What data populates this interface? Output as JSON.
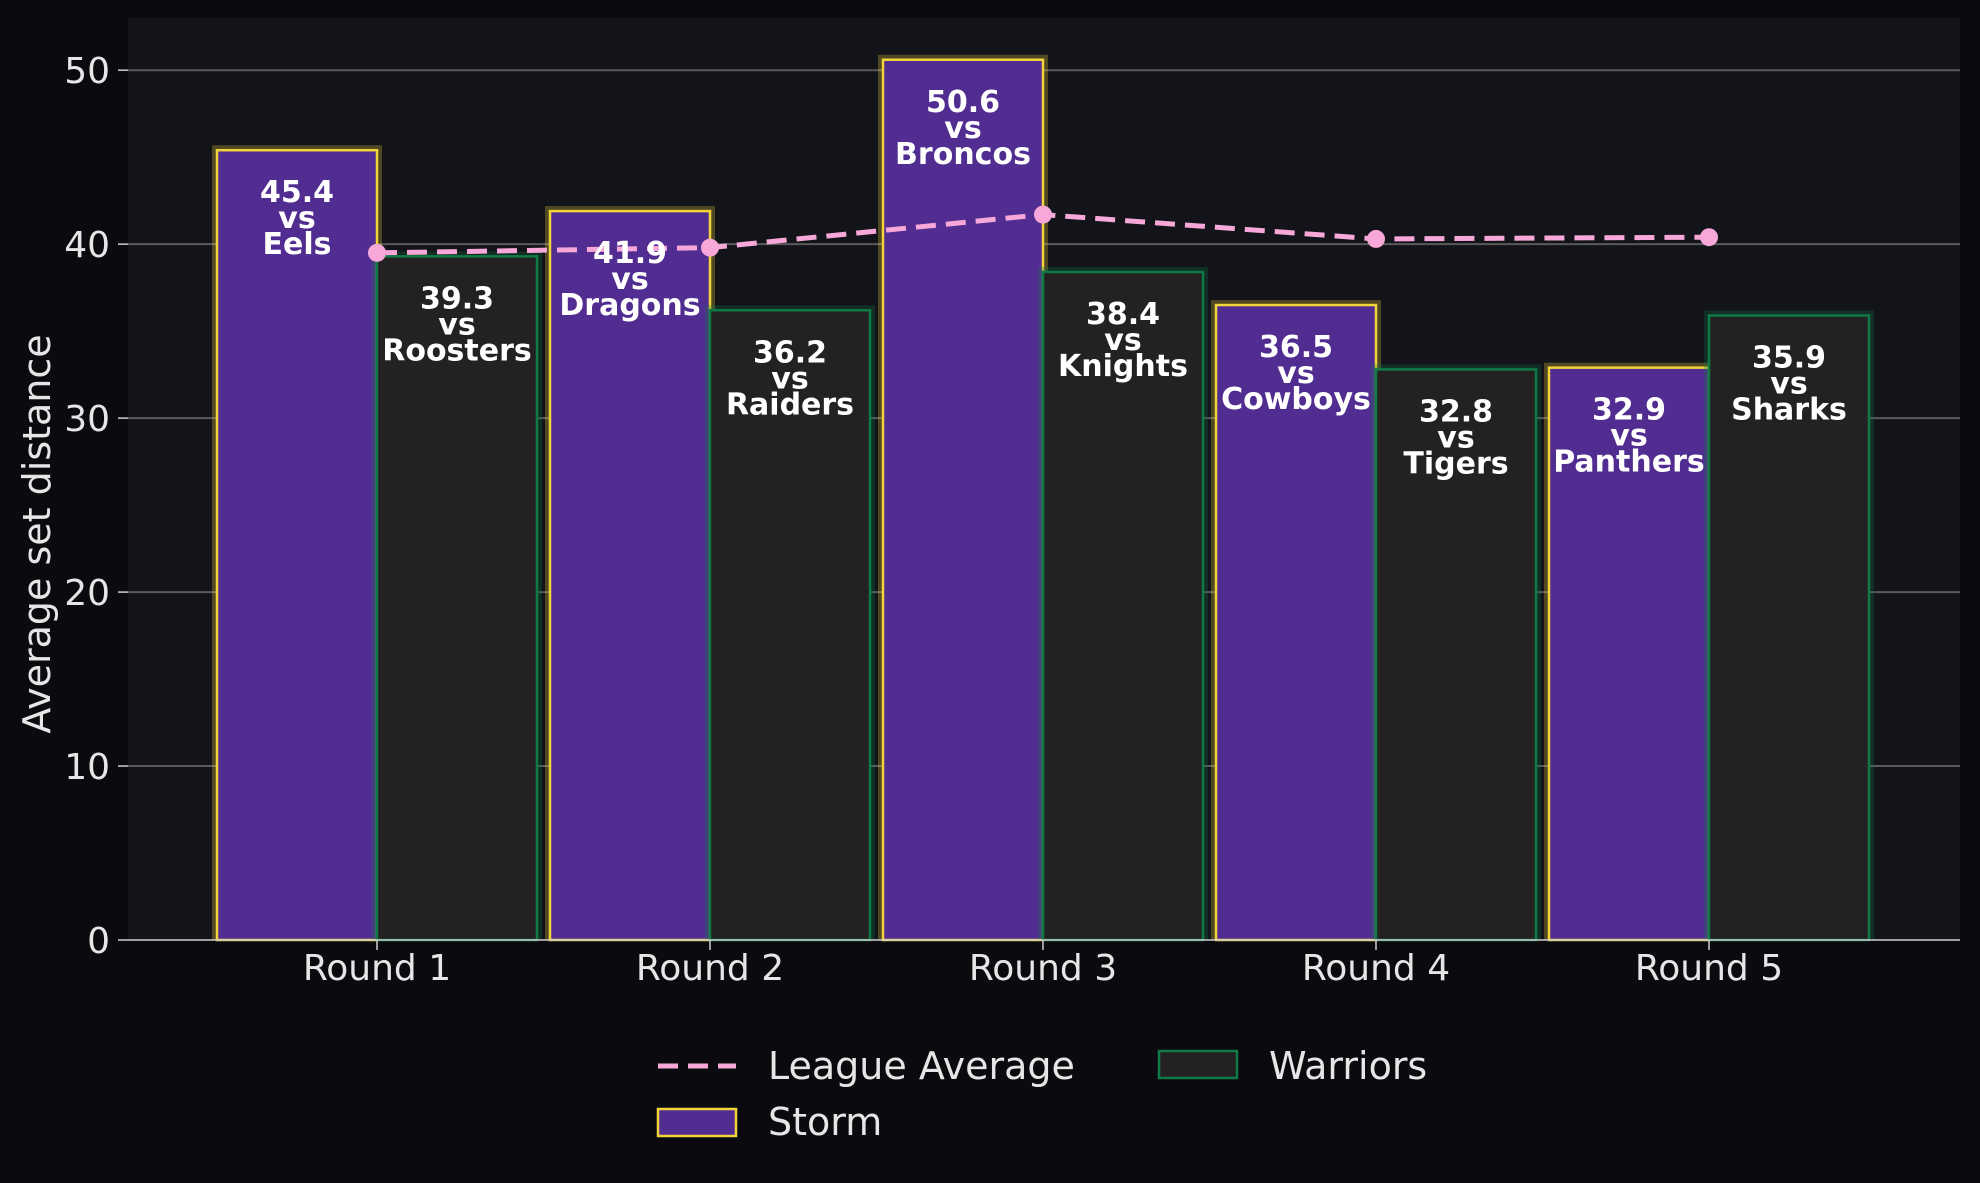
{
  "chart_data": {
    "type": "bar",
    "categories": [
      "Round 1",
      "Round 2",
      "Round 3",
      "Round 4",
      "Round 5"
    ],
    "ylabel": "Average set distance",
    "xlabel": "",
    "ylim": [
      0,
      53
    ],
    "yticks": [
      0,
      10,
      20,
      30,
      40,
      50
    ],
    "grid": true,
    "legend_position": "bottom-center",
    "series": [
      {
        "name": "Storm",
        "kind": "bar",
        "values": [
          45.4,
          41.9,
          50.6,
          36.5,
          32.9
        ],
        "opponents": [
          "Eels",
          "Dragons",
          "Broncos",
          "Cowboys",
          "Panthers"
        ],
        "color": "#522d91",
        "edge_color": "#f0d43a"
      },
      {
        "name": "Warriors",
        "kind": "bar",
        "values": [
          39.3,
          36.2,
          38.4,
          32.8,
          35.9
        ],
        "opponents": [
          "Roosters",
          "Raiders",
          "Knights",
          "Tigers",
          "Sharks"
        ],
        "color": "#232121",
        "edge_color": "#0f7a45"
      },
      {
        "name": "League Average",
        "kind": "line",
        "values": [
          39.5,
          39.8,
          41.7,
          40.3,
          40.4
        ],
        "color": "#f7a8d8",
        "style": "dashed"
      }
    ],
    "label_connector": "vs"
  }
}
